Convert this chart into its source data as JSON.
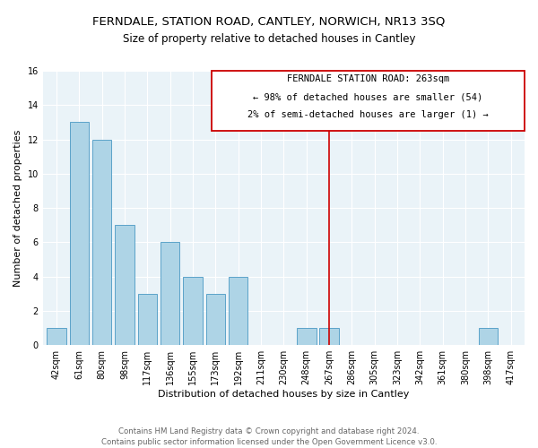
{
  "title": "FERNDALE, STATION ROAD, CANTLEY, NORWICH, NR13 3SQ",
  "subtitle": "Size of property relative to detached houses in Cantley",
  "xlabel": "Distribution of detached houses by size in Cantley",
  "ylabel": "Number of detached properties",
  "footer_line1": "Contains HM Land Registry data © Crown copyright and database right 2024.",
  "footer_line2": "Contains public sector information licensed under the Open Government Licence v3.0.",
  "bar_labels": [
    "42sqm",
    "61sqm",
    "80sqm",
    "98sqm",
    "117sqm",
    "136sqm",
    "155sqm",
    "173sqm",
    "192sqm",
    "211sqm",
    "230sqm",
    "248sqm",
    "267sqm",
    "286sqm",
    "305sqm",
    "323sqm",
    "342sqm",
    "361sqm",
    "380sqm",
    "398sqm",
    "417sqm"
  ],
  "bar_values": [
    1,
    13,
    12,
    7,
    3,
    6,
    4,
    3,
    4,
    0,
    0,
    1,
    1,
    0,
    0,
    0,
    0,
    0,
    0,
    1,
    0
  ],
  "bar_color": "#aed4e6",
  "bar_edge_color": "#5ba3c9",
  "highlight_index": 12,
  "highlight_line_color": "#cc0000",
  "ylim": [
    0,
    16
  ],
  "yticks": [
    0,
    2,
    4,
    6,
    8,
    10,
    12,
    14,
    16
  ],
  "annotation_text_line1": "FERNDALE STATION ROAD: 263sqm",
  "annotation_text_line2": "← 98% of detached houses are smaller (54)",
  "annotation_text_line3": "2% of semi-detached houses are larger (1) →",
  "grid_color": "#dce9f0",
  "background_color": "#ffffff",
  "title_fontsize": 9.5,
  "subtitle_fontsize": 8.5,
  "axis_label_fontsize": 8,
  "tick_fontsize": 7,
  "annotation_fontsize": 7.5,
  "footer_fontsize": 6.2
}
